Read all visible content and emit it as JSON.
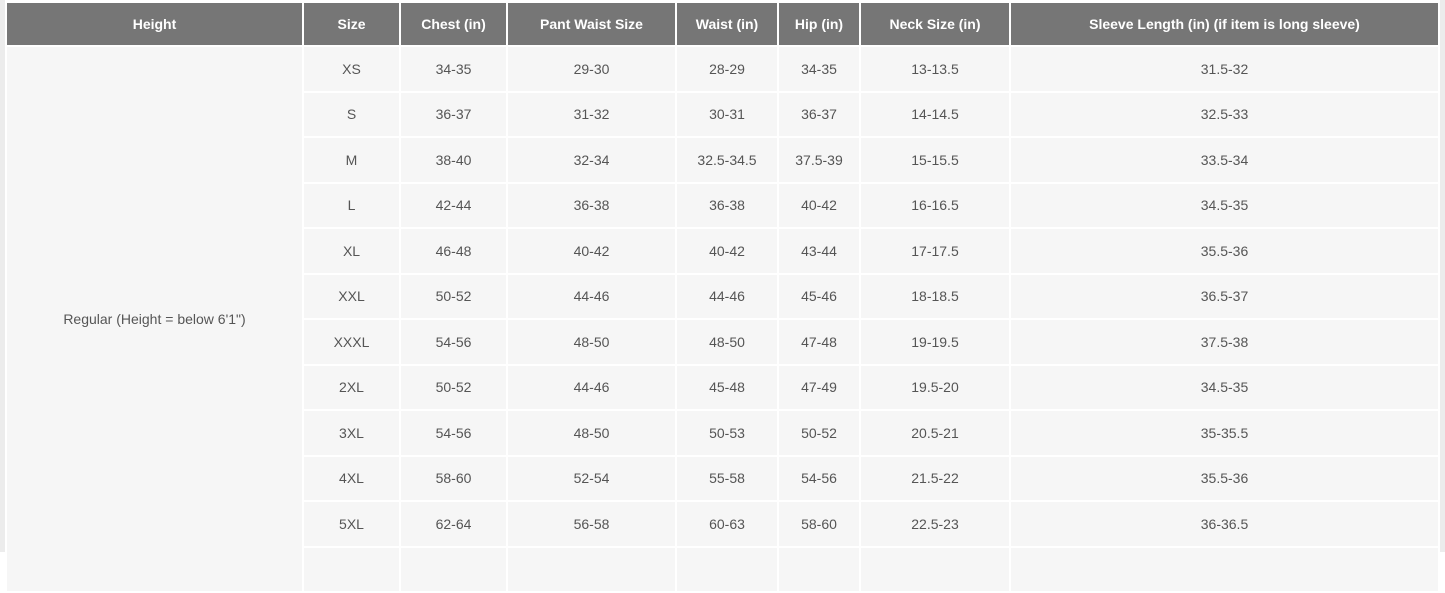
{
  "headers": [
    "Height",
    "Size",
    "Chest (in)",
    "Pant Waist Size",
    "Waist (in)",
    "Hip (in)",
    "Neck Size (in)",
    "Sleeve Length (in) (if item is long sleeve)"
  ],
  "height_group": "Regular (Height = below 6'1\")",
  "rows": [
    [
      "XS",
      "34-35",
      "29-30",
      "28-29",
      "34-35",
      "13-13.5",
      "31.5-32"
    ],
    [
      "S",
      "36-37",
      "31-32",
      "30-31",
      "36-37",
      "14-14.5",
      "32.5-33"
    ],
    [
      "M",
      "38-40",
      "32-34",
      "32.5-34.5",
      "37.5-39",
      "15-15.5",
      "33.5-34"
    ],
    [
      "L",
      "42-44",
      "36-38",
      "36-38",
      "40-42",
      "16-16.5",
      "34.5-35"
    ],
    [
      "XL",
      "46-48",
      "40-42",
      "40-42",
      "43-44",
      "17-17.5",
      "35.5-36"
    ],
    [
      "XXL",
      "50-52",
      "44-46",
      "44-46",
      "45-46",
      "18-18.5",
      "36.5-37"
    ],
    [
      "XXXL",
      "54-56",
      "48-50",
      "48-50",
      "47-48",
      "19-19.5",
      "37.5-38"
    ],
    [
      "2XL",
      "50-52",
      "44-46",
      "45-48",
      "47-49",
      "19.5-20",
      "34.5-35"
    ],
    [
      "3XL",
      "54-56",
      "48-50",
      "50-53",
      "50-52",
      "20.5-21",
      "35-35.5"
    ],
    [
      "4XL",
      "58-60",
      "52-54",
      "55-58",
      "54-56",
      "21.5-22",
      "35.5-36"
    ],
    [
      "5XL",
      "62-64",
      "56-58",
      "60-63",
      "58-60",
      "22.5-23",
      "36-36.5"
    ]
  ]
}
